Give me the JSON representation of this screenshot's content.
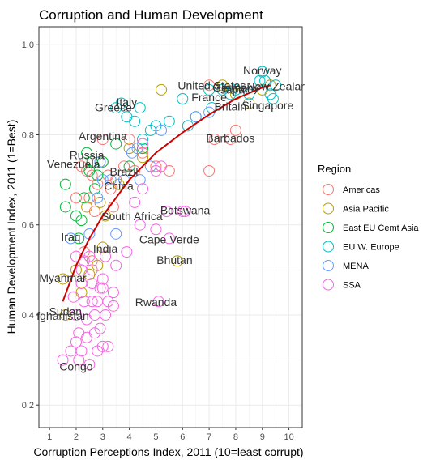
{
  "chart_data": {
    "type": "scatter",
    "title": "Corruption and Human Development",
    "xlabel": "Corruption Perceptions Index, 2011 (10=least corrupt)",
    "ylabel": "Human Development Index, 2011 (1=Best)",
    "xlim": [
      0.6,
      10.5
    ],
    "ylim": [
      0.15,
      1.04
    ],
    "x_ticks": [
      "1",
      "2",
      "3",
      "4",
      "5",
      "6",
      "7",
      "8",
      "9",
      "10"
    ],
    "y_ticks": [
      "0.2",
      "0.4",
      "0.6",
      "0.8",
      "1.0"
    ],
    "grid": true,
    "legend": {
      "title": "Region",
      "position": "right",
      "items": [
        {
          "name": "Americas",
          "color": "#F8766D"
        },
        {
          "name": "Asia Pacific",
          "color": "#B79F00"
        },
        {
          "name": "East EU Cemt Asia",
          "color": "#00BA38"
        },
        {
          "name": "EU W. Europe",
          "color": "#00BFC4"
        },
        {
          "name": "MENA",
          "color": "#619CFF"
        },
        {
          "name": "SSA",
          "color": "#F564E3"
        }
      ]
    },
    "trend": {
      "color": "#cc0000",
      "points": [
        [
          1.5,
          0.43
        ],
        [
          2.0,
          0.51
        ],
        [
          2.5,
          0.57
        ],
        [
          3.0,
          0.62
        ],
        [
          3.5,
          0.66
        ],
        [
          4.0,
          0.7
        ],
        [
          4.5,
          0.73
        ],
        [
          5.0,
          0.76
        ],
        [
          6.0,
          0.805
        ],
        [
          7.0,
          0.845
        ],
        [
          8.0,
          0.88
        ],
        [
          9.0,
          0.905
        ],
        [
          9.3,
          0.91
        ]
      ]
    },
    "series": [
      {
        "name": "Americas",
        "points": [
          [
            2.2,
            0.73
          ],
          [
            2.4,
            0.72
          ],
          [
            2.5,
            0.66
          ],
          [
            2.6,
            0.71
          ],
          [
            2.8,
            0.69
          ],
          [
            3.0,
            0.79
          ],
          [
            3.0,
            0.74
          ],
          [
            3.2,
            0.71
          ],
          [
            3.3,
            0.68
          ],
          [
            3.5,
            0.7
          ],
          [
            3.8,
            0.73
          ],
          [
            4.0,
            0.79
          ],
          [
            4.2,
            0.72
          ],
          [
            4.5,
            0.76
          ],
          [
            5.0,
            0.73
          ],
          [
            5.5,
            0.72
          ],
          [
            7.0,
            0.72
          ],
          [
            7.2,
            0.79
          ],
          [
            7.8,
            0.79
          ],
          [
            8.0,
            0.81
          ],
          [
            7.0,
            0.91
          ],
          [
            2.3,
            0.54
          ],
          [
            2.6,
            0.52
          ],
          [
            3.4,
            0.64
          ],
          [
            2.0,
            0.66
          ],
          [
            2.7,
            0.63
          ]
        ]
      },
      {
        "name": "Asia Pacific",
        "points": [
          [
            1.5,
            0.48
          ],
          [
            2.0,
            0.5
          ],
          [
            2.5,
            0.49
          ],
          [
            2.8,
            0.51
          ],
          [
            3.0,
            0.55
          ],
          [
            3.1,
            0.62
          ],
          [
            3.6,
            0.69
          ],
          [
            4.0,
            0.77
          ],
          [
            4.5,
            0.75
          ],
          [
            5.2,
            0.9
          ],
          [
            5.8,
            0.52
          ],
          [
            7.5,
            0.91
          ],
          [
            8.0,
            0.89
          ],
          [
            8.5,
            0.87
          ],
          [
            9.0,
            0.9
          ],
          [
            9.3,
            0.91
          ],
          [
            2.4,
            0.64
          ],
          [
            2.9,
            0.65
          ],
          [
            2.2,
            0.45
          ],
          [
            1.6,
            0.4
          ]
        ]
      },
      {
        "name": "East EU Cemt Asia",
        "points": [
          [
            1.6,
            0.64
          ],
          [
            1.6,
            0.69
          ],
          [
            2.0,
            0.62
          ],
          [
            2.2,
            0.61
          ],
          [
            2.4,
            0.76
          ],
          [
            2.5,
            0.72
          ],
          [
            2.6,
            0.74
          ],
          [
            2.7,
            0.68
          ],
          [
            2.8,
            0.71
          ],
          [
            3.0,
            0.74
          ],
          [
            3.5,
            0.78
          ],
          [
            4.0,
            0.73
          ],
          [
            4.5,
            0.77
          ],
          [
            2.3,
            0.66
          ],
          [
            2.1,
            0.57
          ]
        ]
      },
      {
        "name": "EU W. Europe",
        "points": [
          [
            3.5,
            0.86
          ],
          [
            3.7,
            0.87
          ],
          [
            3.9,
            0.84
          ],
          [
            4.2,
            0.83
          ],
          [
            4.4,
            0.86
          ],
          [
            4.5,
            0.79
          ],
          [
            4.8,
            0.81
          ],
          [
            5.0,
            0.82
          ],
          [
            5.5,
            0.83
          ],
          [
            6.0,
            0.88
          ],
          [
            6.2,
            0.82
          ],
          [
            6.5,
            0.84
          ],
          [
            7.0,
            0.9
          ],
          [
            7.1,
            0.86
          ],
          [
            7.5,
            0.9
          ],
          [
            7.8,
            0.89
          ],
          [
            8.0,
            0.9
          ],
          [
            8.5,
            0.89
          ],
          [
            8.9,
            0.92
          ],
          [
            9.0,
            0.94
          ],
          [
            9.1,
            0.92
          ],
          [
            9.3,
            0.89
          ],
          [
            9.4,
            0.88
          ],
          [
            9.5,
            0.91
          ]
        ]
      },
      {
        "name": "MENA",
        "points": [
          [
            1.8,
            0.57
          ],
          [
            2.5,
            0.58
          ],
          [
            2.8,
            0.66
          ],
          [
            3.0,
            0.7
          ],
          [
            3.3,
            0.7
          ],
          [
            3.5,
            0.58
          ],
          [
            3.8,
            0.7
          ],
          [
            4.1,
            0.76
          ],
          [
            4.3,
            0.77
          ],
          [
            4.8,
            0.73
          ],
          [
            5.2,
            0.81
          ],
          [
            6.5,
            0.84
          ],
          [
            7.0,
            0.85
          ],
          [
            2.9,
            0.74
          ],
          [
            4.4,
            0.7
          ]
        ]
      },
      {
        "name": "SSA",
        "points": [
          [
            1.5,
            0.3
          ],
          [
            2.0,
            0.34
          ],
          [
            2.2,
            0.32
          ],
          [
            2.5,
            0.29
          ],
          [
            2.8,
            0.32
          ],
          [
            3.0,
            0.33
          ],
          [
            3.2,
            0.33
          ],
          [
            2.0,
            0.4
          ],
          [
            2.4,
            0.39
          ],
          [
            2.6,
            0.43
          ],
          [
            2.8,
            0.43
          ],
          [
            3.0,
            0.46
          ],
          [
            3.0,
            0.48
          ],
          [
            3.2,
            0.43
          ],
          [
            3.4,
            0.42
          ],
          [
            3.4,
            0.45
          ],
          [
            2.2,
            0.47
          ],
          [
            2.3,
            0.52
          ],
          [
            2.5,
            0.53
          ],
          [
            2.6,
            0.47
          ],
          [
            2.9,
            0.46
          ],
          [
            3.1,
            0.53
          ],
          [
            3.5,
            0.51
          ],
          [
            3.9,
            0.54
          ],
          [
            4.4,
            0.6
          ],
          [
            4.5,
            0.68
          ],
          [
            5.0,
            0.59
          ],
          [
            5.4,
            0.63
          ],
          [
            5.5,
            0.57
          ],
          [
            6.1,
            0.63
          ],
          [
            5.1,
            0.43
          ],
          [
            2.1,
            0.36
          ],
          [
            2.4,
            0.35
          ],
          [
            2.7,
            0.36
          ],
          [
            3.1,
            0.4
          ],
          [
            1.9,
            0.44
          ],
          [
            2.0,
            0.53
          ],
          [
            2.2,
            0.5
          ],
          [
            2.6,
            0.5
          ],
          [
            4.2,
            0.65
          ],
          [
            5.0,
            0.72
          ],
          [
            6.0,
            0.63
          ],
          [
            4.5,
            0.78
          ],
          [
            5.2,
            0.73
          ],
          [
            2.3,
            0.43
          ],
          [
            2.7,
            0.4
          ],
          [
            2.9,
            0.37
          ],
          [
            1.8,
            0.32
          ],
          [
            2.1,
            0.3
          ]
        ]
      }
    ],
    "point_labels": [
      {
        "text": "Norway",
        "x": 9.0,
        "y": 0.943
      },
      {
        "text": "Japan",
        "x": 8.0,
        "y": 0.901
      },
      {
        "text": "United States",
        "x": 7.1,
        "y": 0.91
      },
      {
        "text": "New Zealar",
        "x": 9.5,
        "y": 0.908
      },
      {
        "text": "Singapore",
        "x": 9.2,
        "y": 0.866
      },
      {
        "text": "Germany",
        "x": 8.0,
        "y": 0.905
      },
      {
        "text": "France",
        "x": 7.0,
        "y": 0.884
      },
      {
        "text": "Britain",
        "x": 7.8,
        "y": 0.863
      },
      {
        "text": "Italy",
        "x": 3.9,
        "y": 0.873
      },
      {
        "text": "Greece",
        "x": 3.4,
        "y": 0.861
      },
      {
        "text": "Barbados",
        "x": 7.8,
        "y": 0.793
      },
      {
        "text": "Argentina",
        "x": 3.0,
        "y": 0.797
      },
      {
        "text": "Russia",
        "x": 2.4,
        "y": 0.755
      },
      {
        "text": "Venezuela",
        "x": 1.9,
        "y": 0.735
      },
      {
        "text": "Brazil",
        "x": 3.8,
        "y": 0.718
      },
      {
        "text": "China",
        "x": 3.6,
        "y": 0.687
      },
      {
        "text": "Botswana",
        "x": 6.1,
        "y": 0.633
      },
      {
        "text": "South Africa",
        "x": 4.1,
        "y": 0.619
      },
      {
        "text": "Iraq",
        "x": 1.8,
        "y": 0.573
      },
      {
        "text": "India",
        "x": 3.1,
        "y": 0.547
      },
      {
        "text": "Cape Verde",
        "x": 5.5,
        "y": 0.568
      },
      {
        "text": "Bhutan",
        "x": 5.7,
        "y": 0.522
      },
      {
        "text": "Myanmar",
        "x": 1.5,
        "y": 0.483
      },
      {
        "text": "Rwanda",
        "x": 5.0,
        "y": 0.429
      },
      {
        "text": "Sudan",
        "x": 1.6,
        "y": 0.408
      },
      {
        "text": "fghanistan",
        "x": 1.5,
        "y": 0.398
      },
      {
        "text": "Congo",
        "x": 2.0,
        "y": 0.286
      }
    ]
  }
}
